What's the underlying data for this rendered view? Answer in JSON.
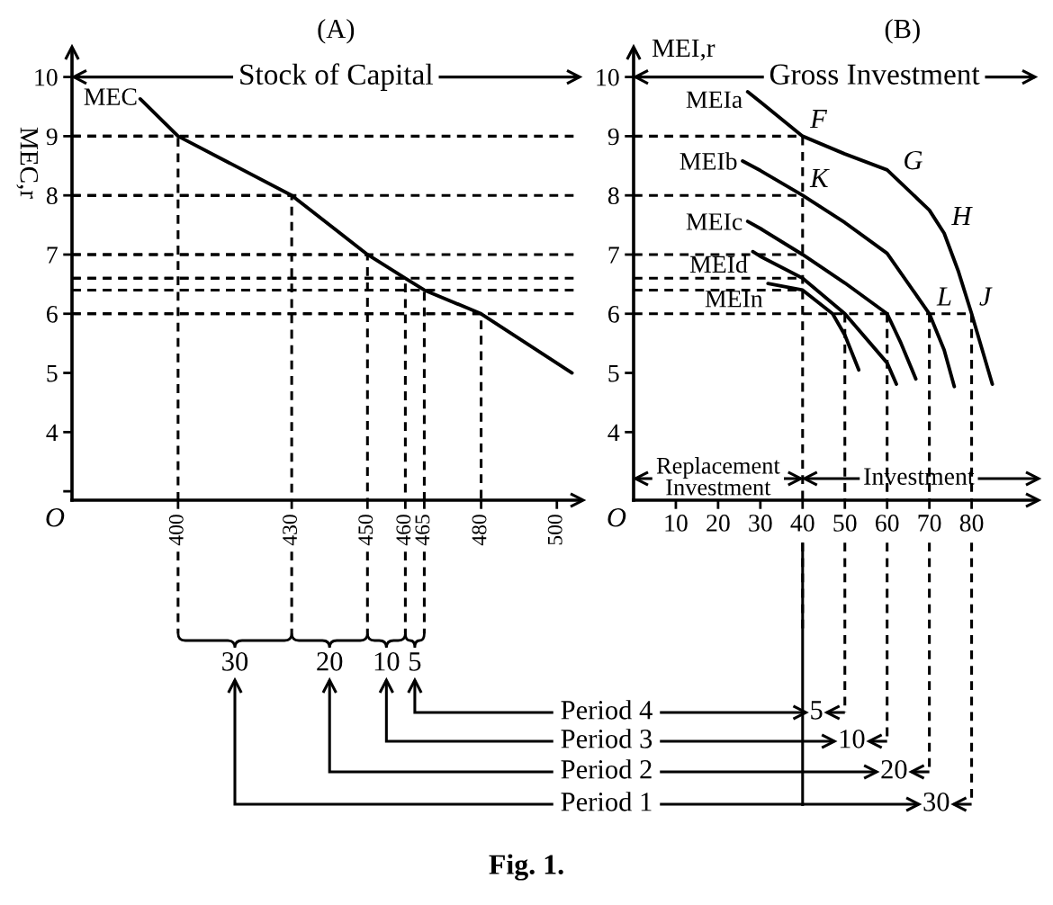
{
  "chart_data": [
    {
      "type": "line",
      "title": "(A)",
      "ylabel": "MEC,r",
      "xlim": [
        372,
        506
      ],
      "xticks": [
        400,
        430,
        450,
        460,
        465,
        480,
        500
      ],
      "ylim": [
        2.85,
        10.45
      ],
      "yticks": [
        {
          "value": 3,
          "label": null
        },
        4,
        5,
        6,
        7,
        8,
        9,
        10
      ],
      "series": [
        {
          "name": "MEC",
          "color": "#000000",
          "x": [
            390,
            400,
            430,
            450,
            460,
            465,
            480,
            504
          ],
          "values": [
            9.63,
            9,
            8,
            7,
            6.6,
            6.4,
            6,
            5
          ]
        },
        {
          "color": "#000000",
          "line_style": "dashed",
          "x": [
            372,
            400,
            400
          ],
          "values": [
            9,
            9,
            2.85
          ]
        },
        {
          "color": "#000000",
          "line_style": "dashed",
          "x": [
            372,
            430,
            430
          ],
          "values": [
            8,
            8,
            2.85
          ]
        },
        {
          "color": "#000000",
          "line_style": "dashed",
          "x": [
            372,
            450,
            450
          ],
          "values": [
            7,
            7,
            2.85
          ]
        },
        {
          "color": "#000000",
          "line_style": "dashed",
          "x": [
            372,
            460,
            460
          ],
          "values": [
            6.6,
            6.6,
            2.85
          ]
        },
        {
          "color": "#000000",
          "line_style": "dashed",
          "x": [
            372,
            465,
            465
          ],
          "values": [
            6.4,
            6.4,
            2.85
          ]
        },
        {
          "color": "#000000",
          "line_style": "dashed",
          "x": [
            372,
            480,
            480
          ],
          "values": [
            6,
            6,
            2.85
          ]
        }
      ],
      "ref_lines": [
        {
          "axis": "y",
          "value": 9,
          "line_style": "dashed",
          "color": "#000000"
        },
        {
          "axis": "y",
          "value": 8,
          "line_style": "dashed",
          "color": "#000000"
        },
        {
          "axis": "y",
          "value": 7,
          "line_style": "dashed",
          "color": "#000000"
        },
        {
          "axis": "y",
          "value": 6.6,
          "line_style": "dashed",
          "color": "#000000"
        },
        {
          "axis": "y",
          "value": 6.4,
          "line_style": "dashed",
          "color": "#000000"
        },
        {
          "axis": "y",
          "value": 6,
          "line_style": "dashed",
          "color": "#000000"
        }
      ],
      "annotations": [
        "Stock of Capital",
        "O",
        "30",
        "20",
        "10",
        "5",
        "Period 4",
        "Period 3",
        "Period 2",
        "Period 1",
        "Fig. 1."
      ]
    },
    {
      "type": "line",
      "title": "(B)",
      "ylabel": "MEI,r",
      "xlim": [
        0,
        95
      ],
      "xticks": [
        10,
        20,
        30,
        40,
        50,
        60,
        70,
        80
      ],
      "ylim": [
        2.85,
        10.45
      ],
      "yticks": [
        4,
        5,
        6,
        7,
        8,
        9,
        10
      ],
      "series": [
        {
          "name": "MEIa",
          "color": "#000000",
          "x": [
            27,
            30,
            40,
            50,
            60,
            70,
            73.5,
            76.9,
            80,
            84.9
          ],
          "values": [
            9.75,
            9.58,
            9,
            8.7,
            8.43,
            7.75,
            7.36,
            6.71,
            6,
            4.81
          ]
        },
        {
          "name": "MEIb",
          "color": "#000000",
          "x": [
            25.8,
            30,
            40,
            50,
            60,
            70,
            73.5,
            75.9
          ],
          "values": [
            8.58,
            8.42,
            8,
            7.54,
            7.02,
            6,
            5.39,
            4.77
          ]
        },
        {
          "name": "MEIc",
          "color": "#000000",
          "x": [
            27,
            30,
            40,
            50,
            60,
            63.3,
            66.8
          ],
          "values": [
            7.56,
            7.44,
            7,
            6.52,
            6,
            5.5,
            4.9
          ]
        },
        {
          "name": "MEId",
          "color": "#000000",
          "x": [
            28.2,
            30,
            40,
            50,
            60,
            62.2
          ],
          "values": [
            7.05,
            6.97,
            6.6,
            6,
            5.17,
            4.81
          ]
        },
        {
          "name": "MEIn",
          "color": "#000000",
          "x": [
            31.8,
            40,
            47.1,
            50,
            53.3
          ],
          "values": [
            6.51,
            6.4,
            6,
            5.64,
            5.05
          ]
        },
        {
          "color": "#000000",
          "line_style": "dashed",
          "x": [
            0,
            40,
            40
          ],
          "values": [
            9,
            9,
            2.85
          ]
        },
        {
          "color": "#000000",
          "line_style": "dashed",
          "x": [
            0,
            40
          ],
          "values": [
            8,
            8
          ]
        },
        {
          "color": "#000000",
          "line_style": "dashed",
          "x": [
            0,
            40
          ],
          "values": [
            7,
            7
          ]
        },
        {
          "color": "#000000",
          "line_style": "dashed",
          "x": [
            0,
            40
          ],
          "values": [
            6.6,
            6.6
          ]
        },
        {
          "color": "#000000",
          "line_style": "dashed",
          "x": [
            0,
            40
          ],
          "values": [
            6.4,
            6.4
          ]
        },
        {
          "color": "#000000",
          "line_style": "dashed",
          "x": [
            0,
            80
          ],
          "values": [
            6,
            6
          ]
        },
        {
          "color": "#000000",
          "line_style": "dashed",
          "x": [
            50,
            50
          ],
          "values": [
            6,
            2.85
          ]
        },
        {
          "color": "#000000",
          "line_style": "dashed",
          "x": [
            60,
            60
          ],
          "values": [
            6,
            2.85
          ]
        },
        {
          "color": "#000000",
          "line_style": "dashed",
          "x": [
            70,
            70
          ],
          "values": [
            6,
            2.85
          ]
        },
        {
          "color": "#000000",
          "line_style": "dashed",
          "x": [
            80,
            80
          ],
          "values": [
            6,
            2.85
          ]
        }
      ],
      "annotations": [
        "Gross Investment",
        "Replacement\nInvestment",
        "Investment",
        "O",
        {
          "text": "F",
          "x": 40,
          "y": 9
        },
        {
          "text": "K",
          "x": 40,
          "y": 8
        },
        {
          "text": "G",
          "x": 62,
          "y": 8.3
        },
        {
          "text": "H",
          "x": 73.5,
          "y": 7.36
        },
        {
          "text": "L",
          "x": 70,
          "y": 6
        },
        {
          "text": "J",
          "x": 80,
          "y": 6
        },
        "5",
        "10",
        "20",
        "30"
      ]
    }
  ]
}
